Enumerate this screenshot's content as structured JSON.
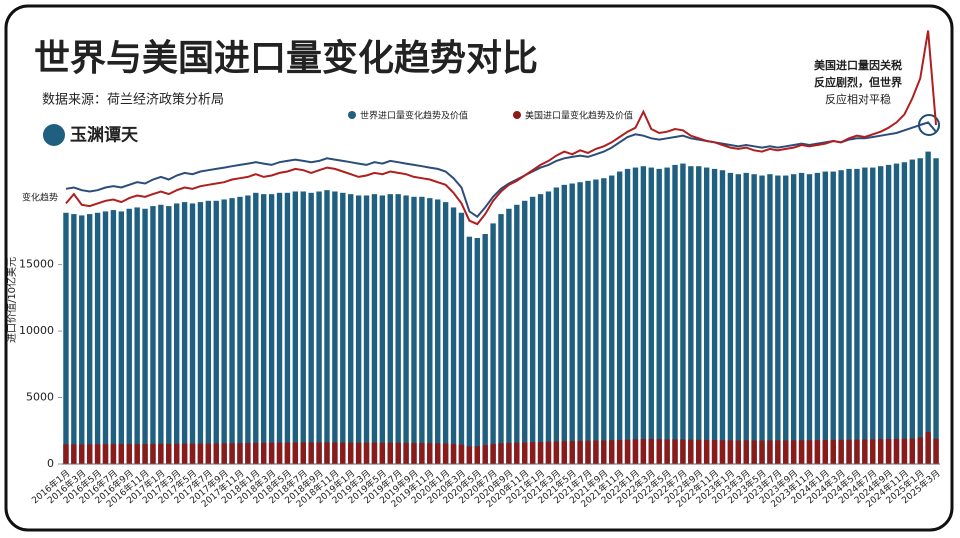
{
  "chart_data": {
    "type": "bar",
    "title": "世界与美国进口量变化趋势对比",
    "subtitle": "数据来源：荷兰经济政策分析局",
    "logo": "玉渊谭天",
    "y_label": "进口价值/10亿美元",
    "trend_label": "变化趋势",
    "annotation": [
      "美国进口量因关税",
      "反应剧烈，但世界",
      "反应相对平稳"
    ],
    "ylim": [
      0,
      33400
    ],
    "yticks": [
      0,
      5000,
      10000,
      15000
    ],
    "categories": [
      "2016年1月",
      null,
      "2016年3月",
      null,
      "2016年5月",
      null,
      "2016年7月",
      null,
      "2016年9月",
      null,
      "2016年11月",
      null,
      "2017年1月",
      null,
      "2017年3月",
      null,
      "2017年5月",
      null,
      "2017年7月",
      null,
      "2017年9月",
      null,
      "2017年11月",
      null,
      "2018年1月",
      null,
      "2018年3月",
      null,
      "2018年5月",
      null,
      "2018年7月",
      null,
      "2018年9月",
      null,
      "2018年11月",
      null,
      "2019年1月",
      null,
      "2019年3月",
      null,
      "2019年5月",
      null,
      "2019年7月",
      null,
      "2019年9月",
      null,
      "2019年11月",
      null,
      "2020年1月",
      null,
      "2020年3月",
      null,
      "2020年5月",
      null,
      "2020年7月",
      null,
      "2020年9月",
      null,
      "2020年11月",
      null,
      "2021年1月",
      null,
      "2021年3月",
      null,
      "2021年5月",
      null,
      "2021年7月",
      null,
      "2021年9月",
      null,
      "2021年11月",
      null,
      "2022年1月",
      null,
      "2022年3月",
      null,
      "2022年5月",
      null,
      "2022年7月",
      null,
      "2022年9月",
      null,
      "2022年11月",
      null,
      "2023年1月",
      null,
      "2023年3月",
      null,
      "2023年5月",
      null,
      "2023年7月",
      null,
      "2023年9月",
      null,
      "2023年11月",
      null,
      "2024年1月",
      null,
      "2024年3月",
      null,
      "2024年5月",
      null,
      "2024年7月",
      null,
      "2024年9月",
      null,
      "2024年11月",
      null,
      "2025年1月",
      null,
      "2025年3月"
    ],
    "series": [
      {
        "name": "世界进口量变化趋势及价值",
        "color": "#1f5f7f",
        "values": [
          18900,
          18800,
          18700,
          18800,
          18900,
          19000,
          19100,
          19000,
          19200,
          19300,
          19200,
          19400,
          19500,
          19400,
          19600,
          19700,
          19600,
          19700,
          19800,
          19800,
          19900,
          20000,
          20100,
          20200,
          20400,
          20300,
          20300,
          20400,
          20400,
          20500,
          20500,
          20400,
          20500,
          20600,
          20500,
          20400,
          20300,
          20200,
          20200,
          20300,
          20200,
          20300,
          20300,
          20200,
          20100,
          20100,
          20000,
          19900,
          19700,
          19300,
          18900,
          17100,
          17000,
          17300,
          18100,
          18800,
          19200,
          19500,
          19800,
          20100,
          20300,
          20500,
          20800,
          21000,
          21100,
          21200,
          21300,
          21400,
          21500,
          21700,
          22000,
          22200,
          22300,
          22400,
          22300,
          22200,
          22300,
          22500,
          22600,
          22400,
          22400,
          22300,
          22200,
          22100,
          21900,
          21800,
          21900,
          21800,
          21700,
          21800,
          21700,
          21700,
          21800,
          21900,
          21800,
          21900,
          22000,
          22000,
          22100,
          22200,
          22200,
          22300,
          22300,
          22400,
          22500,
          22600,
          22700,
          22900,
          23000,
          23500,
          23000
        ]
      },
      {
        "name": "美国进口量变化趋势及价值",
        "color": "#8b1a1a",
        "values": [
          1480,
          1470,
          1460,
          1480,
          1490,
          1490,
          1500,
          1490,
          1500,
          1510,
          1500,
          1510,
          1520,
          1510,
          1520,
          1530,
          1530,
          1540,
          1540,
          1550,
          1550,
          1560,
          1570,
          1580,
          1590,
          1590,
          1600,
          1610,
          1610,
          1620,
          1620,
          1620,
          1630,
          1630,
          1620,
          1620,
          1610,
          1600,
          1610,
          1610,
          1600,
          1600,
          1600,
          1590,
          1580,
          1580,
          1570,
          1560,
          1550,
          1500,
          1450,
          1330,
          1340,
          1420,
          1510,
          1560,
          1590,
          1610,
          1620,
          1640,
          1660,
          1680,
          1700,
          1720,
          1730,
          1740,
          1750,
          1760,
          1770,
          1790,
          1810,
          1830,
          1860,
          1870,
          1880,
          1860,
          1850,
          1850,
          1840,
          1830,
          1820,
          1810,
          1800,
          1790,
          1780,
          1770,
          1780,
          1770,
          1760,
          1770,
          1770,
          1770,
          1780,
          1790,
          1780,
          1790,
          1800,
          1810,
          1820,
          1830,
          1830,
          1840,
          1850,
          1870,
          1880,
          1890,
          1900,
          1920,
          2000,
          2400,
          1900
        ]
      },
      {
        "type": "line",
        "color": "#2b4d7a",
        "values": [
          20700,
          20800,
          20600,
          20500,
          20600,
          20800,
          20900,
          20800,
          21000,
          21200,
          21100,
          21400,
          21600,
          21400,
          21700,
          21900,
          21800,
          22000,
          22100,
          22200,
          22300,
          22400,
          22500,
          22600,
          22700,
          22600,
          22500,
          22700,
          22800,
          22900,
          22800,
          22700,
          22800,
          23000,
          22900,
          22800,
          22700,
          22600,
          22500,
          22700,
          22600,
          22800,
          22700,
          22600,
          22500,
          22400,
          22300,
          22200,
          22000,
          21500,
          20800,
          19000,
          18600,
          19300,
          20100,
          20700,
          21100,
          21400,
          21700,
          22000,
          22300,
          22500,
          22800,
          23000,
          23100,
          23200,
          23100,
          23300,
          23500,
          23800,
          24200,
          24600,
          24800,
          24700,
          24500,
          24400,
          24500,
          24600,
          24700,
          24500,
          24400,
          24300,
          24200,
          24100,
          24000,
          23900,
          24000,
          23900,
          23800,
          23900,
          23800,
          23900,
          24000,
          24100,
          24000,
          24100,
          24200,
          24300,
          24200,
          24400,
          24500,
          24500,
          24600,
          24700,
          24800,
          24900,
          25100,
          25300,
          25500,
          25700,
          25000
        ]
      },
      {
        "type": "line",
        "color": "#b01e1e",
        "values": [
          19600,
          20300,
          19500,
          19400,
          19600,
          19800,
          19900,
          19700,
          20000,
          20200,
          20100,
          20300,
          20500,
          20300,
          20600,
          20800,
          20700,
          20900,
          21000,
          21100,
          21200,
          21400,
          21500,
          21600,
          21800,
          21600,
          21700,
          21900,
          22000,
          22200,
          22100,
          21900,
          22100,
          22300,
          22200,
          22000,
          21800,
          21600,
          21700,
          21900,
          21800,
          22000,
          21900,
          21800,
          21600,
          21500,
          21400,
          21200,
          21000,
          20400,
          19600,
          18300,
          18050,
          18800,
          19800,
          20500,
          21000,
          21300,
          21700,
          22100,
          22500,
          22800,
          23200,
          23500,
          23300,
          23600,
          23400,
          23700,
          23900,
          24200,
          24600,
          25000,
          25300,
          26500,
          25200,
          24900,
          25000,
          25200,
          25100,
          24700,
          24500,
          24300,
          24200,
          24000,
          23800,
          23700,
          23800,
          23600,
          23500,
          23700,
          23600,
          23700,
          23800,
          24000,
          23900,
          24000,
          24100,
          24300,
          24200,
          24500,
          24700,
          24600,
          24800,
          25000,
          25300,
          25700,
          26300,
          27500,
          29000,
          32600,
          25500
        ]
      }
    ]
  }
}
